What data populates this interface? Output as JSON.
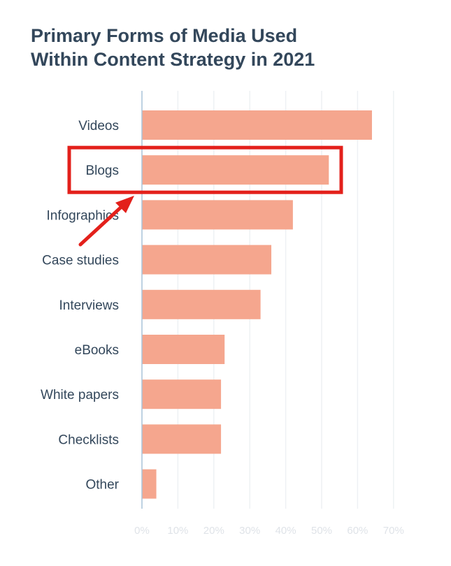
{
  "title_line1": "Primary Forms of Media Used",
  "title_line2": "Within Content Strategy in 2021",
  "colors": {
    "bar": "#f5a68e",
    "highlight": "#e3201b",
    "axis": "#a9c4d8",
    "grid": "#eef1f4",
    "text": "#33475b",
    "tick_text": "#dfe3e8"
  },
  "annotation": {
    "highlighted_category": "Blogs",
    "shape": "rectangle-outline-with-arrow"
  },
  "chart_data": {
    "type": "bar",
    "orientation": "horizontal",
    "title": "Primary Forms of Media Used Within Content Strategy in 2021",
    "categories": [
      "Videos",
      "Blogs",
      "Infographics",
      "Case studies",
      "Interviews",
      "eBooks",
      "White papers",
      "Checklists",
      "Other"
    ],
    "values": [
      64,
      52,
      42,
      36,
      33,
      23,
      22,
      22,
      4
    ],
    "xlim": [
      0,
      70
    ],
    "xticks": [
      "0%",
      "10%",
      "20%",
      "30%",
      "40%",
      "50%",
      "60%",
      "70%"
    ],
    "xtick_values": [
      0,
      10,
      20,
      30,
      40,
      50,
      60,
      70
    ],
    "xlabel": "",
    "ylabel": "",
    "grid": true
  }
}
